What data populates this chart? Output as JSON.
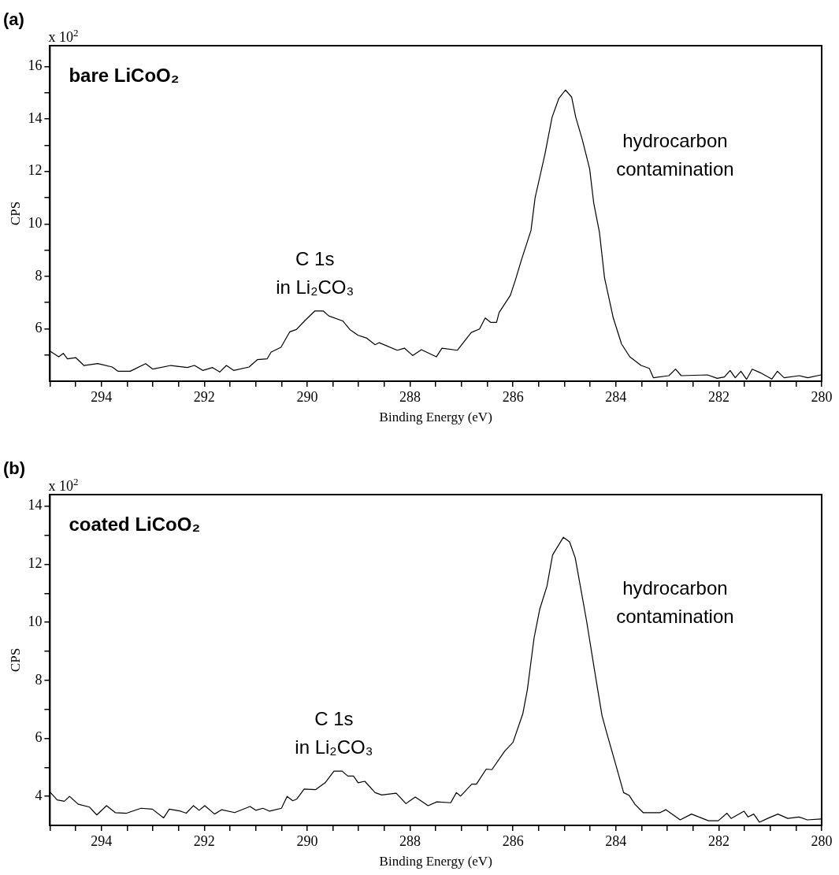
{
  "chart_data": [
    {
      "type": "line",
      "title": "(a)",
      "subtitle": "bare LiCoO₂",
      "xlabel": "Binding Energy (eV)",
      "ylabel": "CPS",
      "marker": "none",
      "line_style": "solid",
      "grid": false,
      "annotations": [
        "x 10$^{2}$",
        {
          "text": "C 1s\nin Li₂CO₃",
          "x": 289.85,
          "y": 6.68
        },
        "hydrocarbon\ncontamination"
      ],
      "xlim": [
        295,
        280
      ],
      "ylim": [
        4,
        16.8
      ],
      "xticks": [
        {
          "value": 295,
          "label": null
        },
        {
          "value": 294.5,
          "label": null
        },
        294,
        {
          "value": 293.5,
          "label": null
        },
        {
          "value": 293,
          "label": null
        },
        {
          "value": 292.5,
          "label": null
        },
        292,
        {
          "value": 291.5,
          "label": null
        },
        {
          "value": 291,
          "label": null
        },
        {
          "value": 290.5,
          "label": null
        },
        290,
        {
          "value": 289.5,
          "label": null
        },
        {
          "value": 289,
          "label": null
        },
        {
          "value": 288.5,
          "label": null
        },
        288,
        {
          "value": 287.5,
          "label": null
        },
        {
          "value": 287,
          "label": null
        },
        {
          "value": 286.5,
          "label": null
        },
        286,
        {
          "value": 285.5,
          "label": null
        },
        {
          "value": 285,
          "label": null
        },
        {
          "value": 284.5,
          "label": null
        },
        284,
        {
          "value": 283.5,
          "label": null
        },
        {
          "value": 283,
          "label": null
        },
        {
          "value": 282.5,
          "label": null
        },
        282,
        {
          "value": 281.5,
          "label": null
        },
        {
          "value": 281,
          "label": null
        },
        {
          "value": 280.5,
          "label": null
        },
        280
      ],
      "yticks": [
        {
          "value": 5,
          "label": null
        },
        6,
        {
          "value": 7,
          "label": null
        },
        8,
        {
          "value": 9,
          "label": null
        },
        10,
        {
          "value": 11,
          "label": null
        },
        12,
        {
          "value": 13,
          "label": null
        },
        14,
        {
          "value": 15,
          "label": null
        },
        16
      ],
      "series": [
        {
          "color": "#000000",
          "x": [
            295,
            294.83,
            294.74,
            294.66,
            294.5,
            294.34,
            294.07,
            293.79,
            293.68,
            293.44,
            293.14,
            293.0,
            292.65,
            292.33,
            292.19,
            292.03,
            291.84,
            291.7,
            291.57,
            291.43,
            291.13,
            290.97,
            290.78,
            290.7,
            290.51,
            290.34,
            290.21,
            290.04,
            289.85,
            289.69,
            289.58,
            289.31,
            289.17,
            289.01,
            288.84,
            288.68,
            288.6,
            288.25,
            288.11,
            287.95,
            287.78,
            287.49,
            287.38,
            287.08,
            286.81,
            286.65,
            286.54,
            286.43,
            286.32,
            286.27,
            286.05,
            285.95,
            285.84,
            285.65,
            285.57,
            285.38,
            285.24,
            285.11,
            284.98,
            284.86,
            284.78,
            284.65,
            284.51,
            284.43,
            284.32,
            284.22,
            284.05,
            283.89,
            283.73,
            283.51,
            283.35,
            283.27,
            282.97,
            282.84,
            282.73,
            282.22,
            282.03,
            281.89,
            281.78,
            281.68,
            281.57,
            281.46,
            281.35,
            281.19,
            280.97,
            280.86,
            280.73,
            280.43,
            280.27,
            280.01
          ],
          "values": [
            5.15,
            4.93,
            5.06,
            4.85,
            4.9,
            4.6,
            4.67,
            4.54,
            4.38,
            4.38,
            4.67,
            4.46,
            4.6,
            4.52,
            4.6,
            4.41,
            4.52,
            4.35,
            4.6,
            4.41,
            4.54,
            4.82,
            4.85,
            5.11,
            5.29,
            5.88,
            5.97,
            6.32,
            6.68,
            6.68,
            6.49,
            6.3,
            5.97,
            5.75,
            5.64,
            5.39,
            5.47,
            5.18,
            5.26,
            4.98,
            5.2,
            4.93,
            5.26,
            5.18,
            5.86,
            5.99,
            6.41,
            6.24,
            6.24,
            6.62,
            7.28,
            7.88,
            8.6,
            9.75,
            11.0,
            12.65,
            14.07,
            14.78,
            15.11,
            14.84,
            14.07,
            13.2,
            12.1,
            10.79,
            9.69,
            7.94,
            6.41,
            5.42,
            4.93,
            4.6,
            4.49,
            4.13,
            4.21,
            4.46,
            4.21,
            4.24,
            4.11,
            4.16,
            4.41,
            4.13,
            4.38,
            4.07,
            4.46,
            4.32,
            4.08,
            4.38,
            4.13,
            4.21,
            4.13,
            4.24
          ]
        }
      ]
    },
    {
      "type": "line",
      "title": "(b)",
      "subtitle": "coated LiCoO₂",
      "xlabel": "Binding Energy (eV)",
      "ylabel": "CPS",
      "marker": "none",
      "line_style": "solid",
      "grid": false,
      "annotations": [
        "x 10$^{2}$",
        {
          "text": "C 1s\nin Li₂CO₃",
          "x": 289.48,
          "y": 4.87
        },
        "hydrocarbon\ncontamination"
      ],
      "xlim": [
        295,
        280
      ],
      "ylim": [
        3,
        14.4
      ],
      "xticks": [
        {
          "value": 295,
          "label": null
        },
        {
          "value": 294.5,
          "label": null
        },
        294,
        {
          "value": 293.5,
          "label": null
        },
        {
          "value": 293,
          "label": null
        },
        {
          "value": 292.5,
          "label": null
        },
        292,
        {
          "value": 291.5,
          "label": null
        },
        {
          "value": 291,
          "label": null
        },
        {
          "value": 290.5,
          "label": null
        },
        290,
        {
          "value": 289.5,
          "label": null
        },
        {
          "value": 289,
          "label": null
        },
        {
          "value": 288.5,
          "label": null
        },
        288,
        {
          "value": 287.5,
          "label": null
        },
        {
          "value": 287,
          "label": null
        },
        {
          "value": 286.5,
          "label": null
        },
        286,
        {
          "value": 285.5,
          "label": null
        },
        {
          "value": 285,
          "label": null
        },
        {
          "value": 284.5,
          "label": null
        },
        284,
        {
          "value": 283.5,
          "label": null
        },
        {
          "value": 283,
          "label": null
        },
        {
          "value": 282.5,
          "label": null
        },
        282,
        {
          "value": 281.5,
          "label": null
        },
        {
          "value": 281,
          "label": null
        },
        {
          "value": 280.5,
          "label": null
        },
        280
      ],
      "yticks": [
        4,
        {
          "value": 5,
          "label": null
        },
        6,
        {
          "value": 7,
          "label": null
        },
        8,
        {
          "value": 9,
          "label": null
        },
        10,
        {
          "value": 11,
          "label": null
        },
        12,
        {
          "value": 13,
          "label": null
        },
        14
      ],
      "series": [
        {
          "color": "#000000",
          "x": [
            295,
            294.86,
            294.72,
            294.62,
            294.45,
            294.23,
            294.09,
            293.9,
            293.73,
            293.51,
            293.23,
            293.01,
            292.79,
            292.68,
            292.46,
            292.35,
            292.21,
            292.1,
            291.99,
            291.8,
            291.66,
            291.41,
            291.11,
            291.0,
            290.86,
            290.73,
            290.5,
            290.39,
            290.28,
            290.2,
            290.06,
            289.84,
            289.65,
            289.48,
            289.32,
            289.21,
            289.1,
            289.01,
            288.88,
            288.68,
            288.55,
            288.27,
            288.08,
            287.9,
            287.65,
            287.48,
            287.21,
            287.1,
            287.02,
            286.8,
            286.71,
            286.52,
            286.41,
            286.16,
            286.0,
            285.81,
            285.72,
            285.59,
            285.48,
            285.34,
            285.23,
            285.02,
            284.9,
            284.79,
            284.68,
            284.57,
            284.4,
            284.27,
            284.18,
            283.99,
            283.85,
            283.74,
            283.63,
            283.47,
            283.14,
            283.03,
            282.75,
            282.53,
            282.2,
            282.01,
            281.84,
            281.76,
            281.51,
            281.43,
            281.32,
            281.21,
            281.05,
            280.85,
            280.66,
            280.44,
            280.28,
            280.01
          ],
          "values": [
            4.15,
            3.88,
            3.83,
            4.0,
            3.73,
            3.63,
            3.36,
            3.68,
            3.44,
            3.42,
            3.59,
            3.56,
            3.26,
            3.56,
            3.49,
            3.42,
            3.68,
            3.52,
            3.68,
            3.39,
            3.54,
            3.44,
            3.65,
            3.52,
            3.59,
            3.49,
            3.59,
            4.0,
            3.85,
            3.91,
            4.25,
            4.23,
            4.47,
            4.87,
            4.87,
            4.7,
            4.7,
            4.47,
            4.52,
            4.13,
            4.05,
            4.11,
            3.75,
            3.98,
            3.68,
            3.81,
            3.78,
            4.13,
            4.01,
            4.42,
            4.42,
            4.94,
            4.92,
            5.56,
            5.86,
            6.84,
            7.68,
            9.46,
            10.45,
            11.24,
            12.32,
            12.93,
            12.77,
            12.22,
            11.14,
            10.05,
            8.18,
            6.79,
            6.2,
            5.02,
            4.13,
            4.03,
            3.73,
            3.44,
            3.44,
            3.54,
            3.19,
            3.39,
            3.16,
            3.16,
            3.42,
            3.24,
            3.49,
            3.29,
            3.39,
            3.11,
            3.24,
            3.39,
            3.24,
            3.29,
            3.19,
            3.22
          ]
        }
      ]
    }
  ]
}
